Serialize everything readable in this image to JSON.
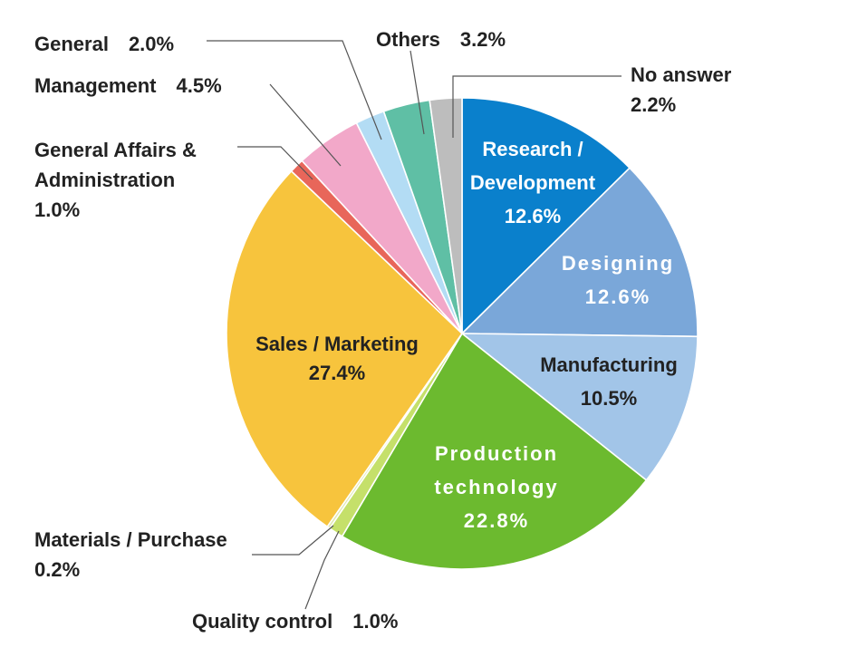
{
  "chart_data": {
    "type": "pie",
    "title": "",
    "slices": [
      {
        "key": "research",
        "label": "Research / Development",
        "lines": [
          "Research /",
          "Development"
        ],
        "pct_text": "12.6%",
        "value": 12.6,
        "color": "#0a80cc"
      },
      {
        "key": "designing",
        "label": "Designing",
        "lines": [
          "Designing"
        ],
        "pct_text": "12.6%",
        "value": 12.6,
        "color": "#7aa7d9"
      },
      {
        "key": "manufacturing",
        "label": "Manufacturing",
        "lines": [
          "Manufacturing"
        ],
        "pct_text": "10.5%",
        "value": 10.5,
        "color": "#a2c5e8"
      },
      {
        "key": "production",
        "label": "Production technology",
        "lines": [
          "Production",
          "technology"
        ],
        "pct_text": "22.8%",
        "value": 22.8,
        "color": "#6cba2f"
      },
      {
        "key": "quality",
        "label": "Quality control",
        "lines": [
          "Quality control"
        ],
        "pct_text": "1.0%",
        "value": 1.0,
        "color": "#c5e06a"
      },
      {
        "key": "materials",
        "label": "Materials / Purchase",
        "lines": [
          "Materials / Purchase"
        ],
        "pct_text": "0.2%",
        "value": 0.2,
        "color": "#e0e8b0"
      },
      {
        "key": "sales",
        "label": "Sales / Marketing",
        "lines": [
          "Sales / Marketing"
        ],
        "pct_text": "27.4%",
        "value": 27.4,
        "color": "#f7c43d"
      },
      {
        "key": "general_affairs",
        "label": "General Affairs & Administration",
        "lines": [
          "General Affairs &",
          "Administration"
        ],
        "pct_text": "1.0%",
        "value": 1.0,
        "color": "#e8665a"
      },
      {
        "key": "management",
        "label": "Management",
        "lines": [
          "Management"
        ],
        "pct_text": "4.5%",
        "value": 4.5,
        "color": "#f2a8c9"
      },
      {
        "key": "general",
        "label": "General",
        "lines": [
          "General"
        ],
        "pct_text": "2.0%",
        "value": 2.0,
        "color": "#b3dcf4"
      },
      {
        "key": "others",
        "label": "Others",
        "lines": [
          "Others"
        ],
        "pct_text": "3.2%",
        "value": 3.2,
        "color": "#5fbfa5"
      },
      {
        "key": "no_answer",
        "label": "No answer",
        "lines": [
          "No answer"
        ],
        "pct_text": "2.2%",
        "value": 2.2,
        "color": "#bdbdbd"
      }
    ]
  }
}
